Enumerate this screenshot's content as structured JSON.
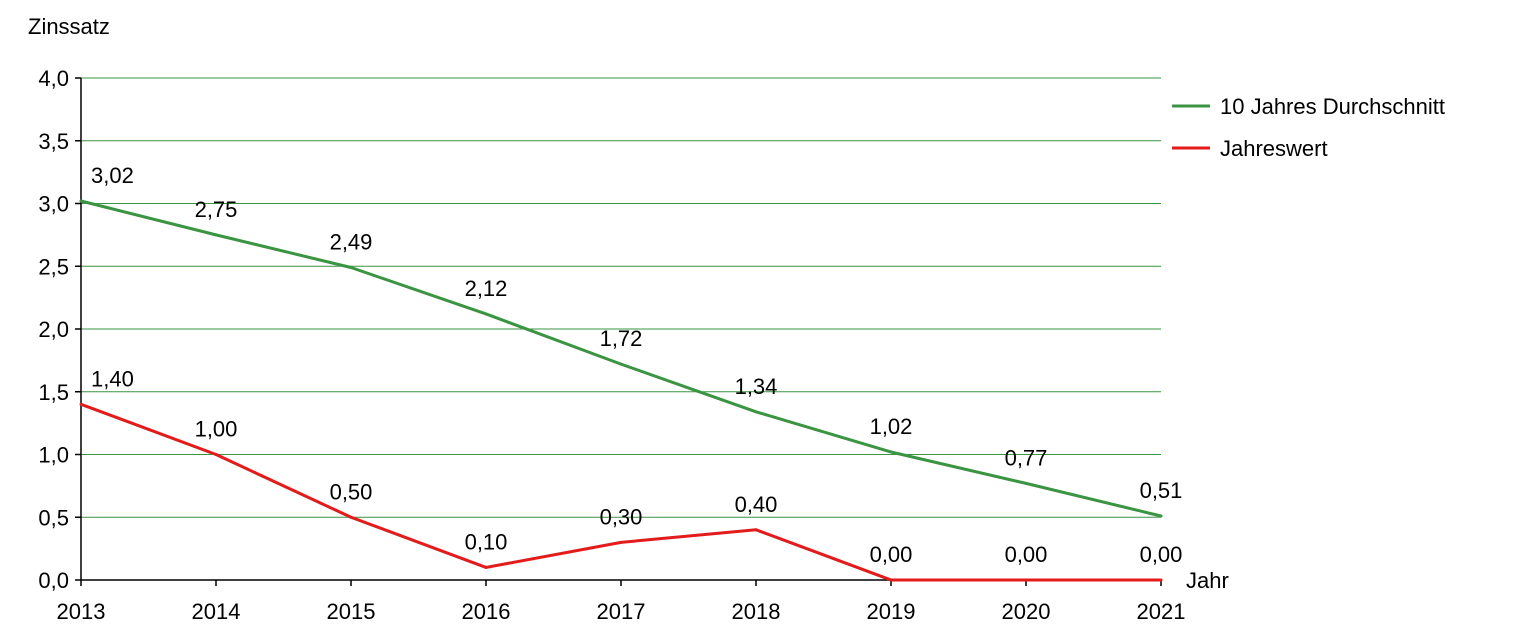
{
  "chart_data": {
    "type": "line",
    "title": "",
    "ylabel": "Zinssatz",
    "xlabel": "Jahr",
    "x": [
      "2013",
      "2014",
      "2015",
      "2016",
      "2017",
      "2018",
      "2019",
      "2020",
      "2021"
    ],
    "ylim": [
      0,
      4
    ],
    "yticks": [
      "0,0",
      "0,5",
      "1,0",
      "1,5",
      "2,0",
      "2,5",
      "3,0",
      "3,5",
      "4,0"
    ],
    "grid": true,
    "legend_position": "top-right",
    "series": [
      {
        "name": "10 Jahres Durchschnitt",
        "color": "#3a9441",
        "values": [
          3.02,
          2.75,
          2.49,
          2.12,
          1.72,
          1.34,
          1.02,
          0.77,
          0.51
        ],
        "labels": [
          "3,02",
          "2,75",
          "2,49",
          "2,12",
          "1,72",
          "1,34",
          "1,02",
          "0,77",
          "0,51"
        ]
      },
      {
        "name": "Jahreswert",
        "color": "#e31b1b",
        "values": [
          1.4,
          1.0,
          0.5,
          0.1,
          0.3,
          0.4,
          0.0,
          0.0,
          0.0
        ],
        "labels": [
          "1,40",
          "1,00",
          "0,50",
          "0,10",
          "0,30",
          "0,40",
          "0,00",
          "0,00",
          "0,00"
        ]
      }
    ],
    "gridline_color": "#3a9441",
    "axis_color": "#000000"
  }
}
